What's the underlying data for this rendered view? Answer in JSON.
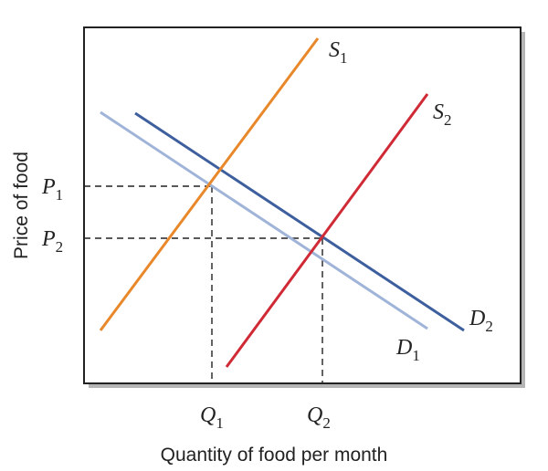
{
  "axes": {
    "y_label": "Price of food",
    "x_label": "Quantity of food per month"
  },
  "curves": [
    {
      "letter": "S",
      "sub": "1"
    },
    {
      "letter": "S",
      "sub": "2"
    },
    {
      "letter": "D",
      "sub": "1"
    },
    {
      "letter": "D",
      "sub": "2"
    }
  ],
  "prices": [
    {
      "letter": "P",
      "sub": "1"
    },
    {
      "letter": "P",
      "sub": "2"
    }
  ],
  "quantities": [
    {
      "letter": "Q",
      "sub": "1"
    },
    {
      "letter": "Q",
      "sub": "2"
    }
  ]
}
